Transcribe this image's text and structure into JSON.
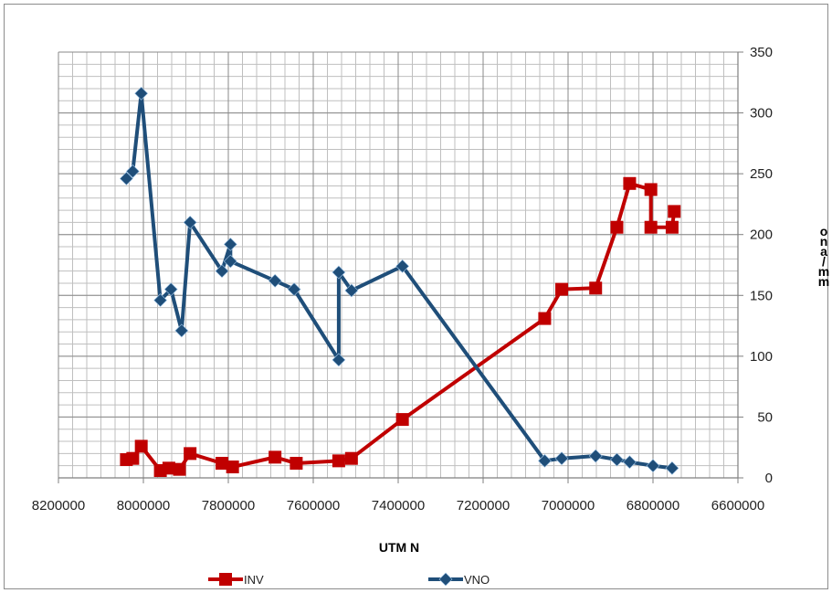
{
  "chart_data": {
    "type": "line",
    "title": "",
    "xlabel": "UTM N",
    "ylabel": "ona/mm",
    "x_reversed": true,
    "xlim": [
      6600000,
      8200000
    ],
    "ylim": [
      0,
      350
    ],
    "x_ticks": [
      8200000,
      8000000,
      7800000,
      7600000,
      7400000,
      7200000,
      7000000,
      6800000,
      6600000
    ],
    "y_ticks": [
      0,
      50,
      100,
      150,
      200,
      250,
      300,
      350
    ],
    "grid": true,
    "legend_position": "bottom",
    "series": [
      {
        "name": "INV",
        "color": "#c00000",
        "marker": "square",
        "x": [
          8040000,
          8025000,
          8005000,
          7960000,
          7940000,
          7915000,
          7890000,
          7815000,
          7790000,
          7690000,
          7640000,
          7540000,
          7510000,
          7390000,
          7055000,
          7015000,
          6935000,
          6885000,
          6855000,
          6805000,
          6805000,
          6755000,
          6750000
        ],
        "y": [
          15,
          16,
          26,
          6,
          8,
          7,
          20,
          12,
          9,
          17,
          12,
          14,
          16,
          48,
          131,
          155,
          156,
          206,
          242,
          237,
          206,
          206,
          219
        ]
      },
      {
        "name": "VNO",
        "color": "#1f4e79",
        "marker": "diamond",
        "x": [
          8040000,
          8025000,
          8005000,
          7960000,
          7935000,
          7910000,
          7890000,
          7815000,
          7795000,
          7795000,
          7690000,
          7645000,
          7540000,
          7540000,
          7510000,
          7390000,
          7055000,
          7015000,
          6935000,
          6885000,
          6855000,
          6800000,
          6755000
        ],
        "y": [
          246,
          252,
          316,
          146,
          155,
          121,
          210,
          170,
          192,
          178,
          162,
          155,
          97,
          169,
          154,
          174,
          14,
          16,
          18,
          15,
          13,
          10,
          8
        ]
      }
    ]
  }
}
